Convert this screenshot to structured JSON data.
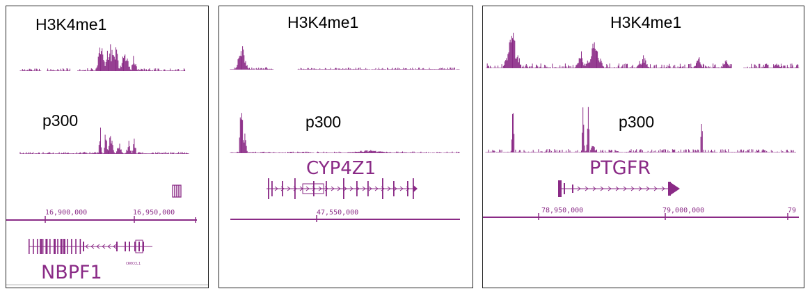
{
  "colors": {
    "track": "#8a2a86",
    "border": "#222222",
    "label": "#000000"
  },
  "panels": [
    {
      "id": "nbpf1",
      "track1_label": "H3K4me1",
      "track2_label": "p300",
      "gene_name": "NBPF1",
      "small_gene_label": "CR0CCL1",
      "coords": [
        "16,900,000",
        "16,950,000"
      ]
    },
    {
      "id": "cyp4z1",
      "track1_label": "H3K4me1",
      "track2_label": "p300",
      "gene_name": "CYP4Z1",
      "coords": [
        "47,550,000"
      ]
    },
    {
      "id": "ptgfr",
      "track1_label": "H3K4me1",
      "track2_label": "p300",
      "gene_name": "PTGFR",
      "coords": [
        "78,950,000",
        "79,000,000",
        "79"
      ]
    }
  ]
}
